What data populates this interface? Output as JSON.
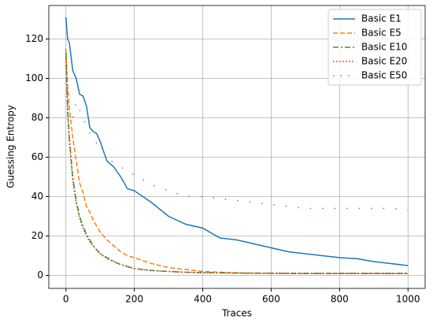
{
  "chart_data": {
    "type": "line",
    "x_label": "Traces",
    "y_label": "Guessing Entropy",
    "x": [
      0,
      5,
      10,
      20,
      30,
      40,
      50,
      60,
      70,
      80,
      90,
      100,
      120,
      140,
      160,
      180,
      200,
      250,
      300,
      350,
      400,
      450,
      500,
      550,
      600,
      650,
      700,
      750,
      800,
      850,
      900,
      950,
      1000
    ],
    "series": [
      {
        "name": "Basic E1",
        "color": "#1f77b4",
        "linestyle": "solid",
        "values": [
          131,
          120,
          118,
          104,
          100,
          92,
          91,
          86,
          75,
          73,
          72,
          68,
          58,
          55,
          50,
          44,
          43,
          37,
          30,
          26,
          24,
          19,
          18,
          16,
          14,
          12,
          11,
          10,
          9,
          8.5,
          7,
          6,
          5
        ]
      },
      {
        "name": "Basic E5",
        "color": "#ff7f0e",
        "linestyle": "dashed",
        "values": [
          115,
          95,
          85,
          70,
          58,
          47,
          42,
          35,
          32,
          28,
          25,
          22,
          18,
          15,
          12,
          10,
          9,
          6,
          4,
          3,
          2,
          1.6,
          1.3,
          1.2,
          1.1,
          1.1,
          1,
          1,
          1,
          1,
          1,
          1,
          1
        ]
      },
      {
        "name": "Basic E10",
        "color": "#2ca02c",
        "linestyle": "dashdot",
        "values": [
          113,
          85,
          70,
          50,
          38,
          30,
          25,
          21,
          18,
          15,
          13,
          11,
          9,
          7,
          5.5,
          4.5,
          3.5,
          2.5,
          2,
          1.6,
          1.4,
          1.3,
          1.2,
          1.1,
          1.1,
          1,
          1,
          1,
          1,
          1,
          1,
          1,
          1
        ]
      },
      {
        "name": "Basic E20",
        "color": "#d62728",
        "linestyle": "dotted",
        "values": [
          110,
          82,
          68,
          48,
          37,
          29,
          24,
          20,
          17,
          15,
          13,
          11,
          8.5,
          7,
          5.5,
          4.5,
          3.5,
          2.5,
          2,
          1.6,
          1.4,
          1.3,
          1.2,
          1.1,
          1.1,
          1,
          1,
          1,
          1,
          1,
          1,
          1,
          1
        ]
      },
      {
        "name": "Basic E50",
        "color": "#9467bd",
        "linestyle": "sparse",
        "values": [
          98,
          90,
          85,
          80,
          88,
          84,
          80,
          76,
          72,
          70,
          67,
          65,
          60,
          57,
          55,
          53,
          51,
          46,
          43,
          40,
          40,
          39,
          38,
          37,
          36,
          35,
          34,
          34,
          34,
          34,
          34,
          34,
          33
        ]
      }
    ],
    "xlim": [
      -50,
      1050
    ],
    "ylim": [
      -6.6,
      137
    ],
    "xticks": [
      0,
      200,
      400,
      600,
      800,
      1000
    ],
    "yticks": [
      0,
      20,
      40,
      60,
      80,
      100,
      120
    ],
    "grid": true,
    "legend": "upper right"
  }
}
